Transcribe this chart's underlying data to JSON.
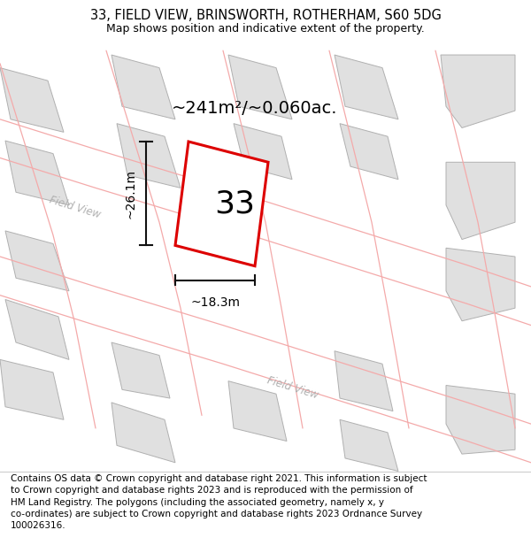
{
  "title": "33, FIELD VIEW, BRINSWORTH, ROTHERHAM, S60 5DG",
  "subtitle": "Map shows position and indicative extent of the property.",
  "footer": "Contains OS data © Crown copyright and database right 2021. This information is subject\nto Crown copyright and database rights 2023 and is reproduced with the permission of\nHM Land Registry. The polygons (including the associated geometry, namely x, y\nco-ordinates) are subject to Crown copyright and database rights 2023 Ordnance Survey\n100026316.",
  "area_label": "~241m²/~0.060ac.",
  "width_label": "~18.3m",
  "height_label": "~26.1m",
  "plot_number": "33",
  "map_bg": "#f2f2f2",
  "building_fill": "#e0e0e0",
  "building_edge": "#b0b0b0",
  "plot_fill": "#ffffff",
  "plot_edge": "#dd0000",
  "plot_linewidth": 2.2,
  "pink_line_color": "#f4aaaa",
  "dim_line_color": "#111111",
  "road_label_color": "#b0b0b0",
  "title_fontsize": 10.5,
  "subtitle_fontsize": 9,
  "footer_fontsize": 7.5,
  "area_fontsize": 14,
  "plot_num_fontsize": 26,
  "dim_fontsize": 10
}
